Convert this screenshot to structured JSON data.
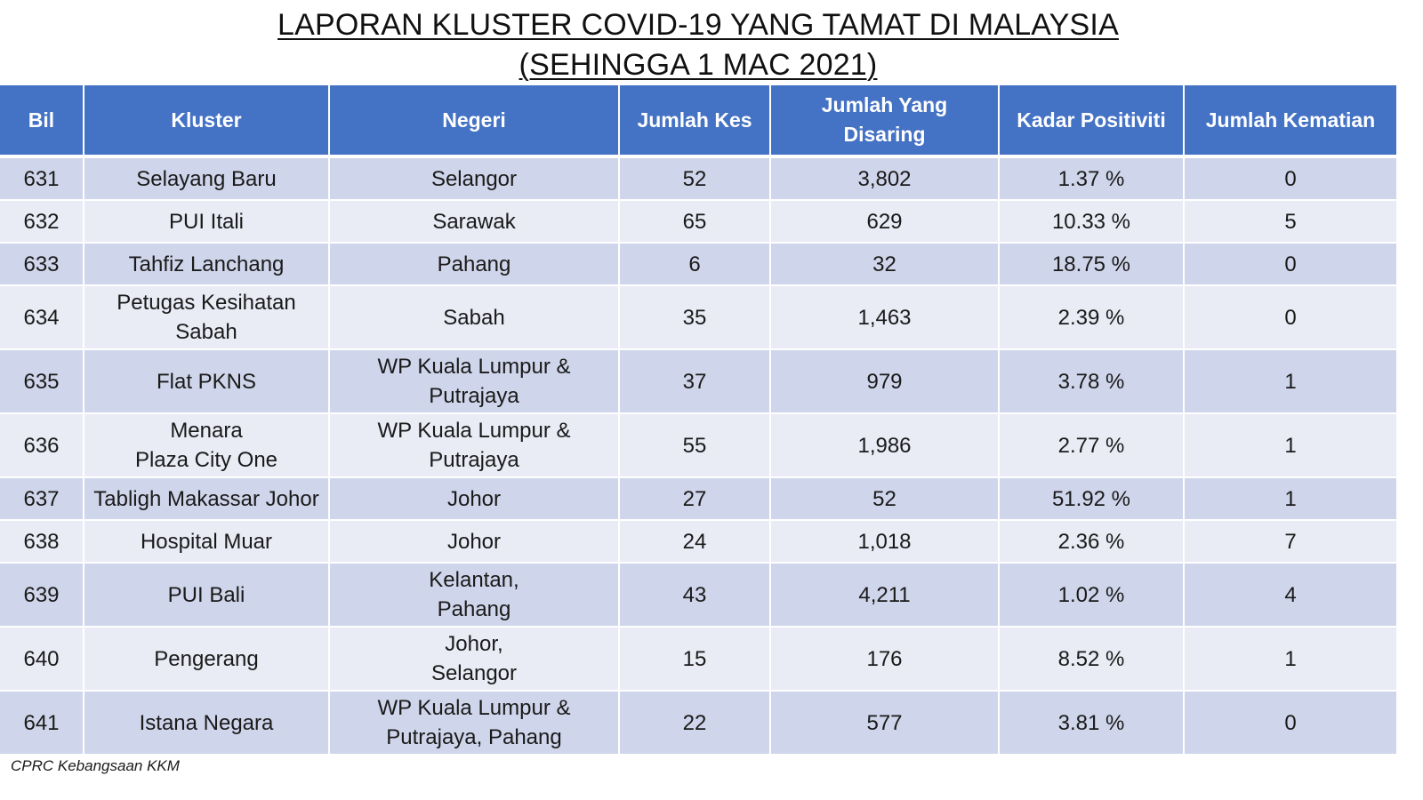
{
  "title": {
    "line1": "LAPORAN KLUSTER COVID-19 YANG TAMAT DI MALAYSIA",
    "line2": "(SEHINGGA 1 MAC 2021)"
  },
  "headers": {
    "bil": "Bil",
    "kluster": "Kluster",
    "negeri": "Negeri",
    "jumlah_kes": "Jumlah Kes",
    "jumlah_disaring_1": "Jumlah Yang",
    "jumlah_disaring_2": "Disaring",
    "kadar_positiviti": "Kadar Positiviti",
    "jumlah_kematian": "Jumlah Kematian"
  },
  "rows": [
    {
      "bil": "631",
      "kluster": [
        "Selayang Baru"
      ],
      "negeri": [
        "Selangor"
      ],
      "kes": "52",
      "disaring": "3,802",
      "positiviti": "1.37 %",
      "kematian": "0"
    },
    {
      "bil": "632",
      "kluster": [
        "PUI Itali"
      ],
      "negeri": [
        "Sarawak"
      ],
      "kes": "65",
      "disaring": "629",
      "positiviti": "10.33 %",
      "kematian": "5"
    },
    {
      "bil": "633",
      "kluster": [
        "Tahfiz Lanchang"
      ],
      "negeri": [
        "Pahang"
      ],
      "kes": "6",
      "disaring": "32",
      "positiviti": "18.75 %",
      "kematian": "0"
    },
    {
      "bil": "634",
      "kluster": [
        "Petugas Kesihatan",
        "Sabah"
      ],
      "negeri": [
        "Sabah"
      ],
      "kes": "35",
      "disaring": "1,463",
      "positiviti": "2.39 %",
      "kematian": "0"
    },
    {
      "bil": "635",
      "kluster": [
        "Flat PKNS"
      ],
      "negeri": [
        "WP Kuala Lumpur &",
        "Putrajaya"
      ],
      "kes": "37",
      "disaring": "979",
      "positiviti": "3.78 %",
      "kematian": "1"
    },
    {
      "bil": "636",
      "kluster": [
        "Menara",
        "Plaza City One"
      ],
      "negeri": [
        "WP Kuala Lumpur &",
        "Putrajaya"
      ],
      "kes": "55",
      "disaring": "1,986",
      "positiviti": "2.77 %",
      "kematian": "1"
    },
    {
      "bil": "637",
      "kluster": [
        "Tabligh Makassar Johor"
      ],
      "negeri": [
        "Johor"
      ],
      "kes": "27",
      "disaring": "52",
      "positiviti": "51.92 %",
      "kematian": "1"
    },
    {
      "bil": "638",
      "kluster": [
        "Hospital Muar"
      ],
      "negeri": [
        "Johor"
      ],
      "kes": "24",
      "disaring": "1,018",
      "positiviti": "2.36 %",
      "kematian": "7"
    },
    {
      "bil": "639",
      "kluster": [
        "PUI Bali"
      ],
      "negeri": [
        "Kelantan,",
        "Pahang"
      ],
      "kes": "43",
      "disaring": "4,211",
      "positiviti": "1.02 %",
      "kematian": "4"
    },
    {
      "bil": "640",
      "kluster": [
        "Pengerang"
      ],
      "negeri": [
        "Johor,",
        "Selangor"
      ],
      "kes": "15",
      "disaring": "176",
      "positiviti": "8.52 %",
      "kematian": "1"
    },
    {
      "bil": "641",
      "kluster": [
        "Istana Negara"
      ],
      "negeri": [
        "WP Kuala Lumpur &",
        "Putrajaya, Pahang"
      ],
      "kes": "22",
      "disaring": "577",
      "positiviti": "3.81 %",
      "kematian": "0"
    }
  ],
  "footnote": "CPRC Kebangsaan KKM"
}
